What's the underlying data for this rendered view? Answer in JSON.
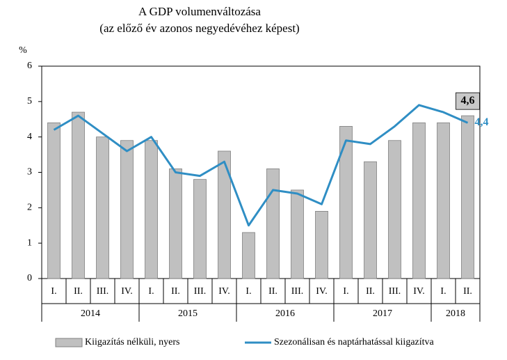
{
  "chart_data": {
    "type": "bar-line",
    "title": "A GDP volumenváltozása",
    "subtitle": "(az előző év azonos negyedévéhez képest)",
    "y_label": "%",
    "groups": [
      {
        "name": "2014",
        "categories": [
          "I.",
          "II.",
          "III.",
          "IV."
        ]
      },
      {
        "name": "2015",
        "categories": [
          "I.",
          "II.",
          "III.",
          "IV."
        ]
      },
      {
        "name": "2016",
        "categories": [
          "I.",
          "II.",
          "III.",
          "IV."
        ]
      },
      {
        "name": "2017",
        "categories": [
          "I.",
          "II.",
          "III.",
          "IV."
        ]
      },
      {
        "name": "2018",
        "categories": [
          "I.",
          "II."
        ]
      }
    ],
    "series": [
      {
        "name": "Kiigazítás nélküli, nyers",
        "type": "bar",
        "color": "#c0c0c0",
        "values": [
          4.4,
          4.7,
          4.0,
          3.9,
          3.9,
          3.1,
          2.8,
          3.6,
          1.3,
          3.1,
          2.5,
          1.9,
          4.3,
          3.3,
          3.9,
          4.4,
          4.4,
          4.6
        ],
        "value_labels": [
          null,
          null,
          null,
          null,
          null,
          null,
          null,
          null,
          null,
          null,
          null,
          null,
          null,
          null,
          null,
          null,
          null,
          "4,6"
        ]
      },
      {
        "name": "Szezonálisan és naptárhatással kiigazítva",
        "type": "line",
        "color": "#2f8ec4",
        "values": [
          4.2,
          4.6,
          4.1,
          3.6,
          4.0,
          3.0,
          2.9,
          3.3,
          1.5,
          2.5,
          2.4,
          2.1,
          3.9,
          3.8,
          4.3,
          4.9,
          4.7,
          4.4
        ],
        "value_labels": [
          null,
          null,
          null,
          null,
          null,
          null,
          null,
          null,
          null,
          null,
          null,
          null,
          null,
          null,
          null,
          null,
          null,
          "4,4"
        ]
      }
    ],
    "ylim": [
      0,
      6
    ],
    "yticks": [
      0,
      1,
      2,
      3,
      4,
      5,
      6
    ],
    "grid": false,
    "legend": "bottom"
  }
}
